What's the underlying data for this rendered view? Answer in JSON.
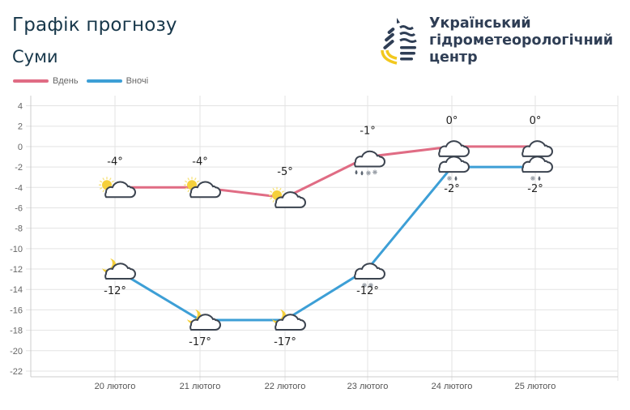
{
  "header": {
    "title": "Графік прогнозу",
    "city": "Суми"
  },
  "legend": [
    {
      "label": "Вдень",
      "color": "#e06c84"
    },
    {
      "label": "Вночі",
      "color": "#3d9fd6"
    }
  ],
  "logo": {
    "line1": "Український",
    "line2": "гідрометеорологічний",
    "line3": "центр"
  },
  "chart_data": {
    "type": "line",
    "title": "Графік прогнозу — Суми",
    "categories": [
      "20 лютого",
      "21 лютого",
      "22 лютого",
      "23 лютого",
      "24 лютого",
      "25 лютого"
    ],
    "series": [
      {
        "name": "Вдень",
        "values": [
          -4,
          -4,
          -5,
          -1,
          0,
          0
        ],
        "labels": [
          "-4°",
          "-4°",
          "-5°",
          "-1°",
          "0°",
          "0°"
        ],
        "icons": [
          "sun-cloud",
          "sun-cloud",
          "sun-cloud",
          "cloud-rain-snow",
          "cloud",
          "cloud"
        ]
      },
      {
        "name": "Вночі",
        "values": [
          -12,
          -17,
          -17,
          -12,
          -2,
          -2
        ],
        "labels": [
          "-12°",
          "-17°",
          "-17°",
          "-12°",
          "-2°",
          "-2°"
        ],
        "icons": [
          "moon-cloud",
          "moon-cloud",
          "moon-cloud",
          "cloud-snow",
          "cloud-snow-rain",
          "cloud-snow-rain"
        ]
      }
    ],
    "yticks": [
      "4",
      "2",
      "0",
      "-2",
      "-4",
      "-6",
      "-8",
      "-10",
      "-12",
      "-14",
      "-16",
      "-18",
      "-20",
      "-22"
    ],
    "ylim": [
      -22,
      4
    ],
    "xlabel": "",
    "ylabel": "",
    "grid": true,
    "legend_position": "top-left"
  }
}
